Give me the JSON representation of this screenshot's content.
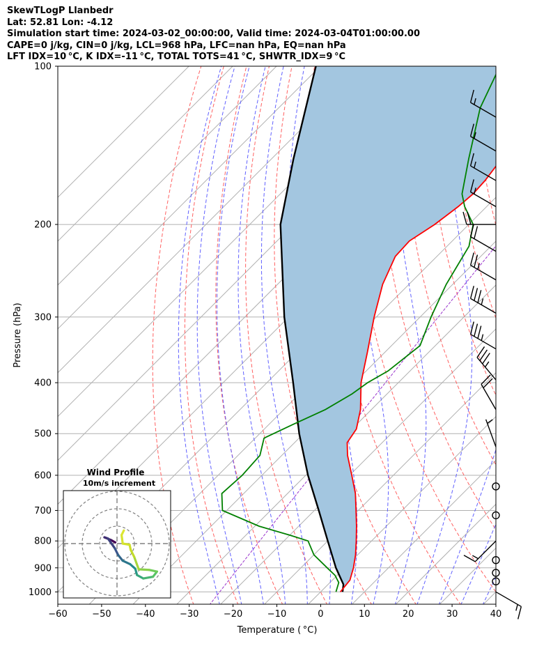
{
  "header": {
    "title": "SkewTLogP Llanbedr",
    "location": "Lat: 52.81   Lon: -4.12",
    "times": "Simulation start time: 2024-03-02_00:00:00, Valid time: 2024-03-04T01:00:00.00",
    "indices": "CAPE=0 j/kg, CIN=0 j/kg, LCL=968 hPa, LFC=nan hPa, EQ=nan hPa",
    "indices2": "LFT IDX=10 °C, K IDX=-11 °C, TOTAL TOTS=41 °C, SHWTR_IDX=9 °C"
  },
  "chart_data": {
    "type": "skewt",
    "xlabel": "Temperature ( °C)",
    "ylabel": "Pressure (hPa)",
    "xlim": [
      -60,
      40
    ],
    "ylim": [
      1050,
      100
    ],
    "xticks": [
      -60,
      -50,
      -40,
      -30,
      -20,
      -10,
      0,
      10,
      20,
      30,
      40
    ],
    "xtick_labels": [
      "−60",
      "−50",
      "−40",
      "−30",
      "−20",
      "−10",
      "0",
      "10",
      "20",
      "30",
      "40"
    ],
    "yticks": [
      1000,
      900,
      800,
      700,
      600,
      500,
      400,
      300,
      200,
      100
    ],
    "ytick_labels": [
      "1000",
      "900",
      "800",
      "700",
      "600",
      "500",
      "400",
      "300",
      "200",
      "100"
    ],
    "temperature": {
      "name": "Temperature",
      "color": "#ff0000",
      "points": [
        [
          1000,
          4.5
        ],
        [
          950,
          4.0
        ],
        [
          900,
          2.0
        ],
        [
          850,
          -0.5
        ],
        [
          800,
          -3.5
        ],
        [
          750,
          -6.8
        ],
        [
          700,
          -10.5
        ],
        [
          650,
          -14.5
        ],
        [
          600,
          -19.5
        ],
        [
          550,
          -25.0
        ],
        [
          520,
          -28.0
        ],
        [
          490,
          -29.0
        ],
        [
          450,
          -32.5
        ],
        [
          400,
          -38.5
        ],
        [
          350,
          -44.0
        ],
        [
          300,
          -50.5
        ],
        [
          260,
          -56.0
        ],
        [
          230,
          -59.5
        ],
        [
          215,
          -59.8
        ],
        [
          200,
          -57.8
        ],
        [
          185,
          -56.5
        ],
        [
          175,
          -56.0
        ],
        [
          165,
          -56.3
        ],
        [
          150,
          -57.5
        ],
        [
          130,
          -58.5
        ],
        [
          115,
          -58.8
        ],
        [
          100,
          -58.5
        ]
      ]
    },
    "dewpoint": {
      "name": "Dewpoint",
      "color": "#008000",
      "points": [
        [
          1000,
          3.5
        ],
        [
          960,
          2.0
        ],
        [
          930,
          -0.5
        ],
        [
          900,
          -4.0
        ],
        [
          850,
          -10.0
        ],
        [
          800,
          -14.5
        ],
        [
          780,
          -20.0
        ],
        [
          750,
          -29.0
        ],
        [
          700,
          -41.0
        ],
        [
          650,
          -45.0
        ],
        [
          600,
          -44.5
        ],
        [
          550,
          -45.0
        ],
        [
          510,
          -48.0
        ],
        [
          480,
          -44.5
        ],
        [
          450,
          -40.5
        ],
        [
          420,
          -38.0
        ],
        [
          400,
          -37.0
        ],
        [
          380,
          -35.0
        ],
        [
          340,
          -33.5
        ],
        [
          300,
          -37.5
        ],
        [
          260,
          -41.5
        ],
        [
          220,
          -45.0
        ],
        [
          200,
          -49.0
        ],
        [
          185,
          -55.0
        ],
        [
          175,
          -58.5
        ],
        [
          150,
          -65.0
        ],
        [
          120,
          -74.0
        ],
        [
          100,
          -79.0
        ]
      ]
    },
    "parcel": {
      "name": "Parcel profile",
      "color": "#000000",
      "points": [
        [
          1000,
          5.0
        ],
        [
          968,
          3.5
        ],
        [
          900,
          -2.0
        ],
        [
          800,
          -10.0
        ],
        [
          700,
          -19.0
        ],
        [
          600,
          -29.5
        ],
        [
          500,
          -41.0
        ],
        [
          400,
          -54.0
        ],
        [
          300,
          -71.0
        ],
        [
          200,
          -93.0
        ],
        [
          150,
          -105.0
        ],
        [
          100,
          -121.0
        ]
      ]
    },
    "shading": "CIN region between parcel profile and temperature",
    "wind_barbs": [
      {
        "p": 125,
        "speed_kt": 15,
        "dir_deg": 300
      },
      {
        "p": 145,
        "speed_kt": 15,
        "dir_deg": 300
      },
      {
        "p": 165,
        "speed_kt": 15,
        "dir_deg": 300
      },
      {
        "p": 185,
        "speed_kt": 15,
        "dir_deg": 300
      },
      {
        "p": 200,
        "speed_kt": 20,
        "dir_deg": 270
      },
      {
        "p": 225,
        "speed_kt": 20,
        "dir_deg": 300
      },
      {
        "p": 255,
        "speed_kt": 25,
        "dir_deg": 300
      },
      {
        "p": 295,
        "speed_kt": 35,
        "dir_deg": 300
      },
      {
        "p": 345,
        "speed_kt": 35,
        "dir_deg": 300
      },
      {
        "p": 395,
        "speed_kt": 35,
        "dir_deg": 320
      },
      {
        "p": 450,
        "speed_kt": 20,
        "dir_deg": 330
      },
      {
        "p": 530,
        "speed_kt": 5,
        "dir_deg": 340
      },
      {
        "p": 630,
        "speed_kt": 0,
        "dir_deg": 0
      },
      {
        "p": 715,
        "speed_kt": 0,
        "dir_deg": 0
      },
      {
        "p": 800,
        "speed_kt": 15,
        "dir_deg": 225
      },
      {
        "p": 870,
        "speed_kt": 0,
        "dir_deg": 0
      },
      {
        "p": 920,
        "speed_kt": 0,
        "dir_deg": 0
      },
      {
        "p": 955,
        "speed_kt": 0,
        "dir_deg": 0
      },
      {
        "p": 1000,
        "speed_kt": 15,
        "dir_deg": 120
      }
    ],
    "hodograph": {
      "title": "Wind Profile",
      "subtitle": "10m/s increment",
      "points": [
        [
          -0.3,
          0.2
        ],
        [
          -1.0,
          0.6
        ],
        [
          -2.2,
          1.1
        ],
        [
          -1.6,
          0.9
        ],
        [
          -0.4,
          -0.8
        ],
        [
          0.2,
          -2.0
        ],
        [
          1.0,
          -3.0
        ],
        [
          2.3,
          -3.6
        ],
        [
          3.2,
          -4.4
        ],
        [
          3.5,
          -5.5
        ],
        [
          4.6,
          -6.1
        ],
        [
          6.3,
          -5.8
        ],
        [
          7.0,
          -4.9
        ],
        [
          5.6,
          -4.6
        ],
        [
          3.8,
          -4.5
        ],
        [
          3.0,
          -2.3
        ],
        [
          2.4,
          -1.1
        ],
        [
          2.2,
          -0.2
        ],
        [
          1.0,
          0.0
        ],
        [
          0.8,
          1.5
        ],
        [
          1.2,
          2.3
        ]
      ]
    }
  }
}
